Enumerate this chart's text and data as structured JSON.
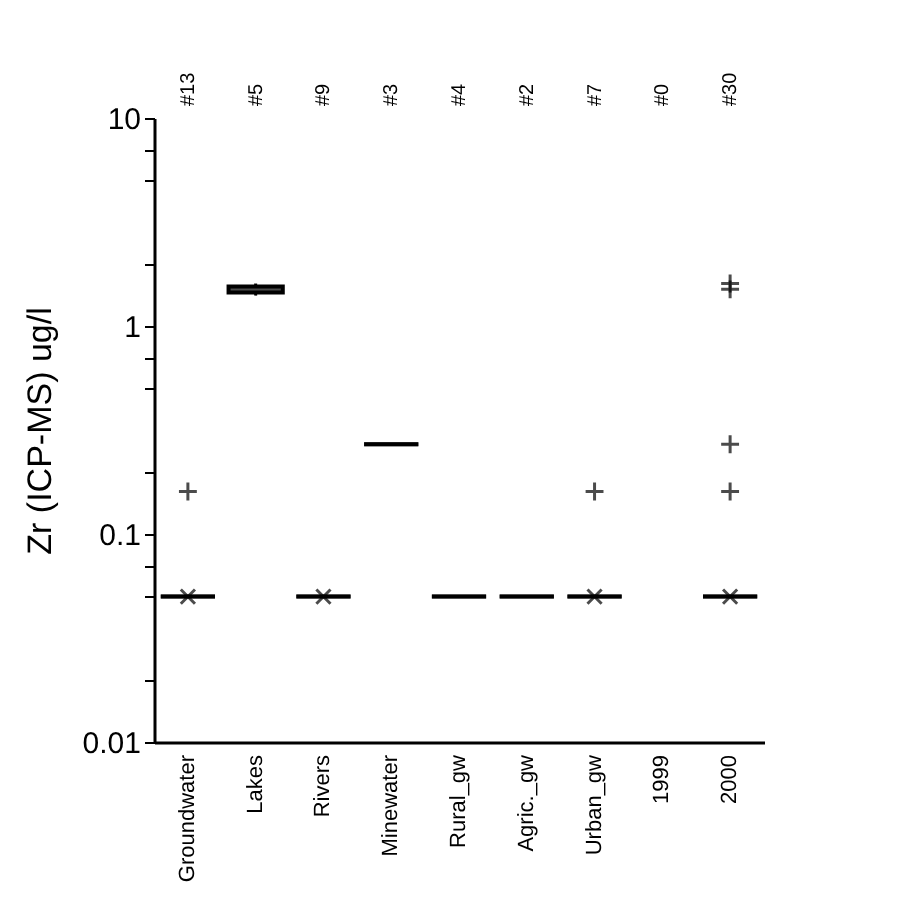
{
  "chart_data": {
    "type": "box",
    "ylabel": "Zr (ICP-MS) ug/l",
    "categories": [
      "Groundwater",
      "Lakes",
      "Rivers",
      "Minewater",
      "Rural_gw",
      "Agric._gw",
      "Urban_gw",
      "1999",
      "2000"
    ],
    "boxes": [
      {
        "low": 0.05,
        "q1": 0.05,
        "median": 0.05,
        "q3": 0.05,
        "high": 0.05,
        "mean": 0.05,
        "outliers": [
          0.16
        ]
      },
      {
        "low": 1.4,
        "q1": 1.45,
        "median": 1.5,
        "q3": 1.55,
        "high": 1.6
      },
      {
        "low": 0.05,
        "q1": 0.05,
        "median": 0.05,
        "q3": 0.05,
        "high": 0.05,
        "mean": 0.05
      },
      {
        "low": 0.27,
        "q1": 0.27,
        "median": 0.27,
        "q3": 0.27,
        "high": 0.27
      },
      {
        "low": 0.05,
        "q1": 0.05,
        "median": 0.05,
        "q3": 0.05,
        "high": 0.05
      },
      {
        "low": 0.05,
        "q1": 0.05,
        "median": 0.05,
        "q3": 0.05,
        "high": 0.05
      },
      {
        "low": 0.05,
        "q1": 0.05,
        "median": 0.05,
        "q3": 0.05,
        "high": 0.05,
        "mean": 0.05,
        "outliers": [
          0.16
        ]
      },
      null,
      {
        "low": 0.05,
        "q1": 0.05,
        "median": 0.05,
        "q3": 0.05,
        "high": 0.05,
        "mean": 0.05,
        "outliers": [
          0.16,
          0.27,
          1.5,
          1.6
        ]
      }
    ],
    "annotations": [
      "#13",
      "#5",
      "#9",
      "#3",
      "#4",
      "#2",
      "#7",
      "#0",
      "#30"
    ],
    "log": true,
    "ylim": [
      0.01,
      10
    ],
    "yticks": [
      0.01,
      {
        "value": 0.02,
        "label": null
      },
      {
        "value": 0.05,
        "label": null
      },
      {
        "value": 0.07,
        "label": null
      },
      0.1,
      {
        "value": 0.2,
        "label": null
      },
      {
        "value": 0.5,
        "label": null
      },
      {
        "value": 0.7,
        "label": null
      },
      1,
      {
        "value": 2,
        "label": null
      },
      {
        "value": 5,
        "label": null
      },
      {
        "value": 7,
        "label": null
      },
      10
    ],
    "grid": false
  }
}
